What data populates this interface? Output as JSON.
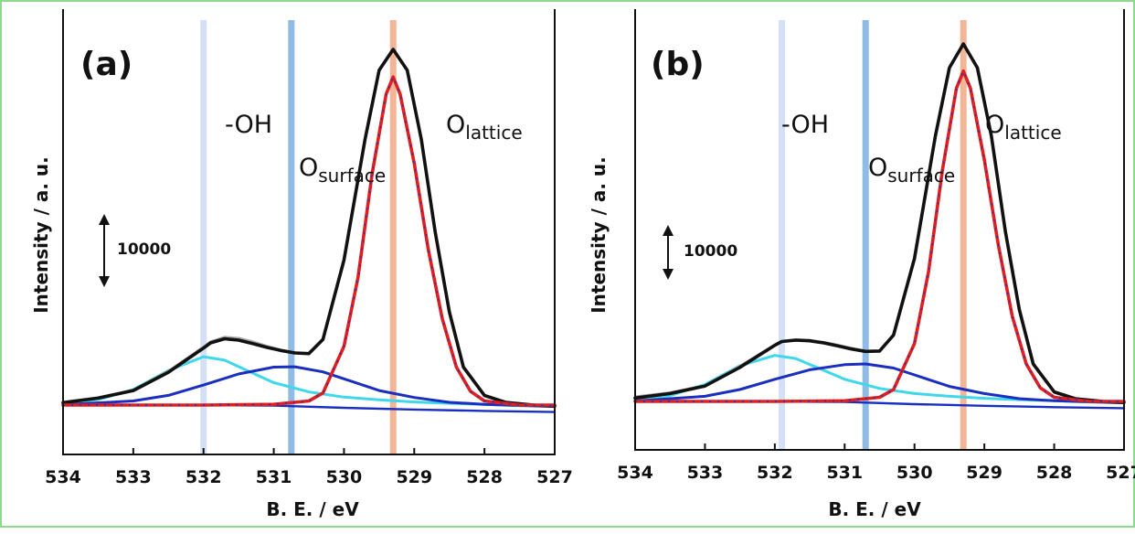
{
  "chart_data": [
    {
      "type": "line",
      "panel_label": "(a)",
      "xlabel": "B. E. / eV",
      "ylabel": "Intensity / a. u.",
      "xlim": [
        534,
        527
      ],
      "x_ticks": [
        "534",
        "533",
        "532",
        "531",
        "530",
        "529",
        "528",
        "527"
      ],
      "scale_bar": "10000",
      "markers": [
        {
          "label": "-OH",
          "x": 532.0,
          "color": "#d3e0f5"
        },
        {
          "label_main": "O",
          "label_sub": "surface",
          "x": 530.75,
          "color": "#8fbce6"
        },
        {
          "label_main": "O",
          "label_sub": "lattice",
          "x": 529.3,
          "color": "#f2b596"
        }
      ],
      "series": [
        {
          "key": "raw",
          "color": "#a8a8a8",
          "x": [
            534,
            533.5,
            533,
            532.5,
            532,
            531.9,
            531.7,
            531.5,
            531.3,
            531.1,
            530.9,
            530.7,
            530.5,
            530.3,
            530,
            529.7,
            529.5,
            529.3,
            529.1,
            528.9,
            528.7,
            528.5,
            528.3,
            528,
            527.7,
            527.3,
            527
          ],
          "y": [
            1000,
            2300,
            4500,
            10000,
            17000,
            18500,
            19800,
            19500,
            18500,
            17200,
            16100,
            15300,
            15000,
            19000,
            41000,
            77000,
            97000,
            103000,
            97000,
            77000,
            50000,
            27000,
            11000,
            2500,
            700,
            0,
            -300
          ]
        },
        {
          "key": "envelope",
          "color": "#111111",
          "x": [
            534,
            533.5,
            533,
            532.5,
            532,
            531.9,
            531.7,
            531.5,
            531.3,
            531.1,
            530.9,
            530.7,
            530.5,
            530.3,
            530,
            529.7,
            529.5,
            529.3,
            529.1,
            528.9,
            528.7,
            528.5,
            528.3,
            528,
            527.7,
            527.3,
            527
          ],
          "y": [
            700,
            2000,
            4200,
            9500,
            16500,
            18000,
            19200,
            18800,
            17800,
            16700,
            15800,
            15100,
            14900,
            19000,
            42000,
            77000,
            97000,
            103000,
            97000,
            77000,
            50000,
            27000,
            11000,
            2800,
            800,
            0,
            -300
          ]
        },
        {
          "key": "oh",
          "color": "#3fd8ea",
          "x": [
            534,
            533.5,
            533,
            532.5,
            532,
            531.7,
            531.4,
            531,
            530.5,
            530,
            529.5,
            529,
            528.5,
            528,
            527.5,
            527
          ],
          "y": [
            400,
            1600,
            4500,
            10000,
            14000,
            13000,
            10200,
            6500,
            3800,
            2300,
            1500,
            900,
            500,
            200,
            -200,
            -400
          ]
        },
        {
          "key": "surface",
          "color": "#1a2fc0",
          "x": [
            534,
            533,
            532.5,
            532,
            531.5,
            531,
            530.7,
            530.3,
            530,
            529.5,
            529,
            528.5,
            528,
            527.5,
            527
          ],
          "y": [
            100,
            1200,
            2800,
            5800,
            9000,
            11000,
            11100,
            9600,
            7600,
            4200,
            2200,
            800,
            200,
            -100,
            -400
          ]
        },
        {
          "key": "lattice",
          "color": "#e02020",
          "x": [
            534,
            532,
            531,
            530.5,
            530.3,
            530,
            529.8,
            529.6,
            529.4,
            529.3,
            529.2,
            529,
            528.8,
            528.6,
            528.4,
            528.2,
            528,
            527.5,
            527
          ],
          "y": [
            0,
            0,
            200,
            1200,
            3500,
            17000,
            37000,
            67000,
            90000,
            95000,
            90000,
            70000,
            45000,
            25000,
            11000,
            4000,
            1200,
            0,
            0
          ]
        },
        {
          "key": "baseline",
          "color": "#1a2fc0",
          "x": [
            534,
            531,
            530,
            529,
            528,
            527
          ],
          "y": [
            200,
            -150,
            -800,
            -1300,
            -1700,
            -2000
          ]
        }
      ]
    },
    {
      "type": "line",
      "panel_label": "(b)",
      "xlabel": "B. E. / eV",
      "ylabel": "Intensity / a. u.",
      "xlim": [
        534,
        527
      ],
      "x_ticks": [
        "534",
        "533",
        "532",
        "531",
        "530",
        "529",
        "528",
        "527"
      ],
      "scale_bar": "10000",
      "markers": [
        {
          "label": "-OH",
          "x": 531.9,
          "color": "#d3e0f5"
        },
        {
          "label_main": "O",
          "label_sub": "surface",
          "x": 530.7,
          "color": "#8fbce6"
        },
        {
          "label_main": "O",
          "label_sub": "lattice",
          "x": 529.3,
          "color": "#f2b596"
        }
      ],
      "series": [
        {
          "key": "raw",
          "color": "#a8a8a8",
          "x": [
            534,
            533.5,
            533,
            532.5,
            532,
            531.9,
            531.7,
            531.5,
            531.3,
            531.1,
            530.9,
            530.7,
            530.5,
            530.3,
            530,
            529.7,
            529.5,
            529.3,
            529.1,
            528.9,
            528.7,
            528.5,
            528.3,
            528,
            527.7,
            527.3,
            527
          ],
          "y": [
            1500,
            2700,
            4800,
            10500,
            16800,
            17800,
            18300,
            18100,
            17500,
            16700,
            15800,
            14900,
            15000,
            19500,
            42000,
            78000,
            98000,
            105000,
            98000,
            78000,
            50000,
            27000,
            11000,
            2500,
            700,
            0,
            -300
          ]
        },
        {
          "key": "envelope",
          "color": "#111111",
          "x": [
            534,
            533.5,
            533,
            532.5,
            532,
            531.9,
            531.7,
            531.5,
            531.3,
            531.1,
            530.9,
            530.7,
            530.5,
            530.3,
            530,
            529.7,
            529.5,
            529.3,
            529.1,
            528.9,
            528.7,
            528.5,
            528.3,
            528,
            527.7,
            527.3,
            527
          ],
          "y": [
            1000,
            2300,
            4500,
            10000,
            16500,
            17600,
            18000,
            17800,
            17200,
            16300,
            15400,
            14700,
            14800,
            19500,
            42000,
            78000,
            98000,
            105000,
            98000,
            78000,
            50000,
            27000,
            11000,
            2800,
            800,
            0,
            -300
          ]
        },
        {
          "key": "oh",
          "color": "#3fd8ea",
          "x": [
            534,
            533.5,
            533,
            532.5,
            532,
            531.7,
            531.4,
            531,
            530.5,
            530,
            529.5,
            529,
            528.5,
            528,
            527.5,
            527
          ],
          "y": [
            400,
            1700,
            5000,
            10500,
            13500,
            12600,
            10000,
            6500,
            3800,
            2300,
            1500,
            900,
            500,
            200,
            -200,
            -400
          ]
        },
        {
          "key": "surface",
          "color": "#1a2fc0",
          "x": [
            534,
            533,
            532.5,
            532,
            531.5,
            531,
            530.7,
            530.3,
            530,
            529.5,
            529,
            528.5,
            528,
            527.5,
            527
          ],
          "y": [
            100,
            1500,
            3500,
            6500,
            9300,
            10800,
            11000,
            9800,
            7800,
            4400,
            2300,
            800,
            200,
            -100,
            -400
          ]
        },
        {
          "key": "lattice",
          "color": "#e02020",
          "x": [
            534,
            532,
            531,
            530.5,
            530.3,
            530,
            529.8,
            529.6,
            529.4,
            529.3,
            529.2,
            529,
            528.8,
            528.6,
            528.4,
            528.2,
            528,
            527.5,
            527
          ],
          "y": [
            0,
            0,
            200,
            1200,
            3500,
            17000,
            38000,
            68000,
            92000,
            97000,
            92000,
            71000,
            46000,
            25000,
            11000,
            4000,
            1200,
            0,
            0
          ]
        },
        {
          "key": "baseline",
          "color": "#1a2fc0",
          "x": [
            534,
            531,
            530,
            529,
            528,
            527
          ],
          "y": [
            200,
            -150,
            -800,
            -1300,
            -1700,
            -2000
          ]
        }
      ]
    }
  ]
}
